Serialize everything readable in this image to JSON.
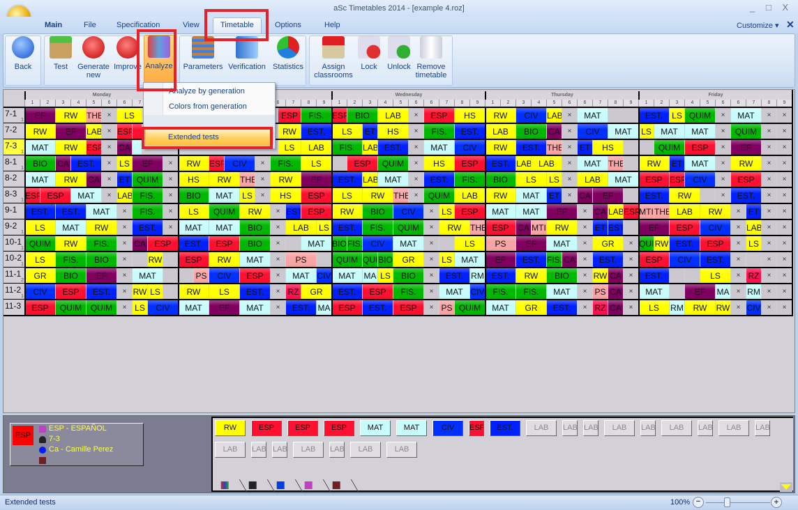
{
  "window": {
    "title": "aSc Timetables 2014  - [example 4.roz]",
    "controls": "_ □ X"
  },
  "menu_tabs": [
    {
      "label": "Main",
      "bold": true
    },
    {
      "label": "File"
    },
    {
      "label": "Specification"
    },
    {
      "label": "View"
    },
    {
      "label": "Timetable",
      "selected": true
    },
    {
      "label": "Options"
    },
    {
      "label": "Help"
    }
  ],
  "customize": "Customize ▾",
  "ribbon": {
    "back": "Back",
    "group1": [
      "Test",
      "Generate new",
      "Improve",
      "Analyze"
    ],
    "group2": [
      "Parameters",
      "Verification",
      "Statistics"
    ],
    "group3": [
      "Assign classrooms",
      "Lock",
      "Unlock",
      "Remove timetable"
    ]
  },
  "dropdown": {
    "items": [
      "Analyze by generation",
      "Colors from generation",
      "Extended tests"
    ],
    "highlighted": "Extended tests"
  },
  "days": [
    "Monday",
    "Tuesday",
    "Wednesday",
    "Thursday",
    "Friday"
  ],
  "slots": [
    "1",
    "2",
    "3",
    "4",
    "5",
    "6",
    "6",
    "7",
    "8",
    "9"
  ],
  "subject_colors": {
    "EF": "#800060",
    "CA": "#800060",
    "RW": "#ffff00",
    "LS": "#ffff00",
    "LAB": "#ffff00",
    "HS": "#ffff00",
    "GR": "#ffff00",
    "THE": "#f8a4a4",
    "PS": "#f8a4a4",
    "MTI": "#f8a4a4",
    "ESP": "#ff1030",
    "RZ": "#ff1050",
    "MAT": "#c8fcfc",
    "MA": "#c8fcfc",
    "RM": "#c8fcfc",
    "FIS.": "#00b800",
    "BIO": "#00b800",
    "QUIM": "#00b800",
    "QUI": "#00b800",
    "EST.": "#0020ff",
    "EST": "#0020ff",
    "CIV": "#0030ff",
    "ET": "#0020ff"
  },
  "rows": [
    {
      "label": "7-1",
      "sub": "1",
      "days": [
        "EF:2 RW:2 THE:1 x:1 LS:2 MAT:2",
        "MAT:2 LS:2 RW:1 x:1 ESP:2 FIS.:2",
        "ESP:1 BIO:2 LAB:2 x:1 ESP:2 HS:2",
        "RW:2 CIV:2 LAB:1 x:1 MAT:2 _:2",
        "EST.:2 LS:1 QUIM:2 x:1 MAT:2 x:1 x:1"
      ]
    },
    {
      "label": "7-2",
      "sub": "",
      "days": [
        "RW:2 EF:2 LAB:1 x:1 ESP:1 ESP:1 MAT:2",
        "BIO:2 EF:2 LS:1 x:1 RW:2 EST.:2",
        "LS:2 ET:1 HS:2 x:1 FIS.:2 EST.:2",
        "LAB:2 BIO:2 CA:1 x:1 CIV:2 MAT:2",
        "LS:1 MAT:2 MAT:2 x:1 QUIM:2 x:1 x:1"
      ]
    },
    {
      "label": "7-3",
      "sub": "1",
      "sel": true,
      "days": [
        "MAT:2 RW:2 ESP:1 x:1 CA:1 MAT:2 x:1",
        "ESP:2 BIO:2 LS:1 x:1 LS:2 LAB:2",
        "FIS.:2 LAB:1 EST.:2 x:1 MAT:2 CIV:2",
        "RW:2 EST.:2 THE:1 x:1 ET:1 HS:2 _:1",
        "_:1 QUIM:2 ESP:2 x:1 EF:2 x:1 x:1"
      ]
    },
    {
      "label": "8-1",
      "sub": "1",
      "days": [
        "BIO:2 CA:1 EST.:2 x:1 LS:1 EF:2 x:1",
        "RW:2 ESP:1 CIV:2 x:1 FIS.:2 LS:2",
        "_:1 ESP:2 QUIM:2 x:1 HS:2 ESP:2",
        "EST.:2 LAB:1 LAB:2 x:1 MAT:2 THE:1 _:1",
        "RW:2 ET:1 MAT:2 x:1 RW:2 x:1 x:1"
      ]
    },
    {
      "label": "8-2",
      "sub": "",
      "days": [
        "MAT:2 RW:2 CA:1 x:1 ET:1 QUIM:2 x:1",
        "HS:2 RW:2 THE:1 x:1 RW:2 EF:2",
        "EST.:2 LAB:1 MAT:2 x:1 EST.:2 FIS.:2",
        "BIO:2 LS:2 LS:1 x:1 LAB:2 MAT:2",
        "ESP:2 ESP:1 CIV:2 x:1 ESP:2 x:1 x:1"
      ]
    },
    {
      "label": "8-3",
      "sub": "1",
      "days": [
        "ESP:1 ESP:2 MAT:2 x:1 LAB:1 FIS.:2 x:1",
        "BIO:2 MAT:2 LS:1 x:1 HS:2 ESP:2",
        "LS:2 RW:2 THE:1 x:1 QUIM:2 LAB:2",
        "RW:2 MAT:2 ET:1 x:1 CA:1 EF:2 _:1",
        "EST.:2 RW:2 _:1 x:1 EST.:2 x:1 x:1"
      ]
    },
    {
      "label": "9-1",
      "sub": "",
      "days": [
        "EST.:2 EST.:2 MAT:2 x:1 FIS.:2 x:1",
        "LS:2 QUIM:2 RW:2 x:1 EST:1 ESP:2",
        "RW:2 BIO:2 CIV:2 x:1 LS:1 ESP:2",
        "MAT:2 MAT:2 EF:2 x:1 CA:1 LAB:1 ESP:1",
        "MTI:1 THE:1 LAB:2 RW:2 x:1 ET:1 x:1 x:1"
      ]
    },
    {
      "label": "9-2",
      "sub": "1",
      "days": [
        "LS:2 MAT:2 RW:2 x:1 EST.:2 x:1",
        "MAT:2 MAT:2 BIO:2 x:1 LAB:2 LS:1",
        "EST.:2 FIS.:2 QUIM:2 x:1 RW:2 THE:1",
        "ESP:2 CA:1 MTI:1 RW:2 x:1 ET:1 EST:1 _:1",
        "EF:2 ESP:2 CIV:2 x:1 LAB:1 x:1 x:1"
      ]
    },
    {
      "label": "10-1",
      "sub": "1",
      "days": [
        "QUIM:2 RW:2 FIS.:2 x:1 CA:1 ESP:2",
        "EST.:2 ESP:2 BIO:2 x:1 _:1 MAT:2",
        "BIO:1 FIS.:1 CIV:2 MAT:2 x:1 _:1 LS:2",
        "PS:2 EF:2 MAT:2 x:1 GR:2 x:1",
        "QUI:1 RW:1 EST.:2 ESP:2 x:1 LS:1 x:1 x:1"
      ]
    },
    {
      "label": "10-2",
      "sub": "1",
      "days": [
        "LS:2 FIS.:2 BIO:2 x:1 _:1 RW:1 _:1",
        "ESP:2 RW:2 MAT:2 x:1 PS:2 _:1",
        "QUIM:2 QUI:1 BIO:1 GR:2 x:1 LS:1 MAT:2",
        "EF:2 EST.:2 FIS.:1 CA:1 x:1 EST.:2 x:1",
        "ESP:2 CIV:2 EST.:2 x:1 _:1 x:1 x:1"
      ]
    },
    {
      "label": "11-1",
      "sub": "2",
      "days": [
        "GR:2 BIO:2 EF:2 x:1 MAT:2 _:1",
        "_:1 PS:1 CIV:2 ESP:2 x:1 MAT:2 CIV:1",
        "MAT:2 MA:1 LS:1 BIO:2 x:1 EST.:2 RM:1",
        "EST.:2 RW:2 BIO:2 x:1 RW:1 CA:1 x:1",
        "EST.:2 _:1 _:1 LS:2 x:1 RZ:1 x:1 x:1"
      ]
    },
    {
      "label": "11-2",
      "sub": "1",
      "days": [
        "CIV:2 ESP:2 EST.:2 x:1 RW:1 LS:1 _:1",
        "RW:2 LS:2 EST.:2 x:1 RZ:1 GR:2",
        "EST.:2 ESP:2 FIS.:2 x:1 MAT:2 CIV:1",
        "FIS.:2 FIS.:2 MAT:2 x:1 PS:1 CA:1 x:1",
        "MAT:2 _:1 EF:2 MA:1 x:1 RM:1 x:1 x:1"
      ]
    },
    {
      "label": "11-3",
      "sub": "",
      "days": [
        "ESP:2 QUIM:2 QUIM:2 x:1 LS:1 CIV:2",
        "MAT:2 EF:2 MAT:2 x:1 EST.:2 MA:1",
        "ESP:2 EST.:2 ESP:2 x:1 PS:1 QUIM:2",
        "MAT:2 GR:2 EST.:2 x:1 RZ:1 CA:1 x:1",
        "LS:2 RM:1 RW:2 RW:1 x:1 CIV:1 x:1 x:1"
      ]
    }
  ],
  "empty_mark": "×",
  "info": {
    "swatch": "ESP",
    "subject": "ESP - ESPAÑOL",
    "class": "7-3",
    "teacher": "Ca - Camille Perez",
    "classroom": ""
  },
  "palette": [
    [
      [
        "RW",
        2
      ],
      [
        "ESP",
        2
      ],
      [
        "ESP",
        2
      ],
      [
        "ESP",
        2
      ],
      [
        "MAT",
        2
      ],
      [
        "MAT",
        2
      ],
      [
        "CIV",
        2
      ],
      [
        "ESP",
        1
      ],
      [
        "EST.",
        2
      ],
      [
        "LAB",
        2,
        true
      ],
      [
        "LAB",
        1,
        true
      ],
      [
        "LAB",
        1,
        true
      ],
      [
        "LAB",
        2,
        true
      ],
      [
        "LAB",
        1,
        true
      ],
      [
        "LAB",
        2,
        true
      ],
      [
        "LAB",
        1,
        true
      ],
      [
        "LAB",
        2,
        true
      ],
      [
        "LAB",
        1,
        true
      ]
    ],
    [
      [
        "LAB",
        2,
        true
      ],
      [
        "LAB",
        1,
        true
      ],
      [
        "LAB",
        1,
        true
      ],
      [
        "LAB",
        2,
        true
      ],
      [
        "LAB",
        1,
        true
      ],
      [
        "LAB",
        2,
        true
      ],
      [
        "LAB",
        2,
        true
      ]
    ]
  ],
  "bottom_tabs": [
    "chart-icon",
    "student-icon",
    "class-cap-icon",
    "subject-book-icon",
    "classroom-desk-icon"
  ],
  "status": {
    "text": "Extended tests",
    "zoom": "100%",
    "zoom_level_percent": 100
  }
}
